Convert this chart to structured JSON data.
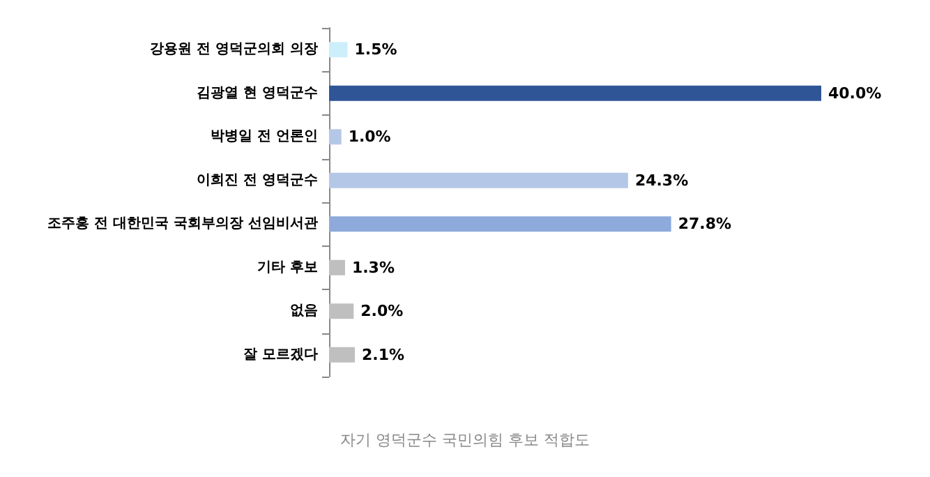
{
  "chart_data": {
    "type": "bar",
    "orientation": "horizontal",
    "title": "자기 영덕군수 국민의힘 후보 적합도",
    "categories": [
      "강용원 전 영덕군의회 의장",
      "김광열 현 영덕군수",
      "박병일 전 언론인",
      "이희진 전 영덕군수",
      "조주홍 전 대한민국 국회부의장 선임비서관",
      "기타 후보",
      "없음",
      "잘 모르겠다"
    ],
    "values": [
      1.5,
      40.0,
      1.0,
      24.3,
      27.8,
      1.3,
      2.0,
      2.1
    ],
    "value_labels": [
      "1.5%",
      "40.0%",
      "1.0%",
      "24.3%",
      "27.8%",
      "1.3%",
      "2.0%",
      "2.1%"
    ],
    "colors": [
      "#cdeefb",
      "#2f5597",
      "#b4c7e7",
      "#b4c7e7",
      "#8eaadb",
      "#bfbfbf",
      "#bfbfbf",
      "#bfbfbf"
    ]
  }
}
